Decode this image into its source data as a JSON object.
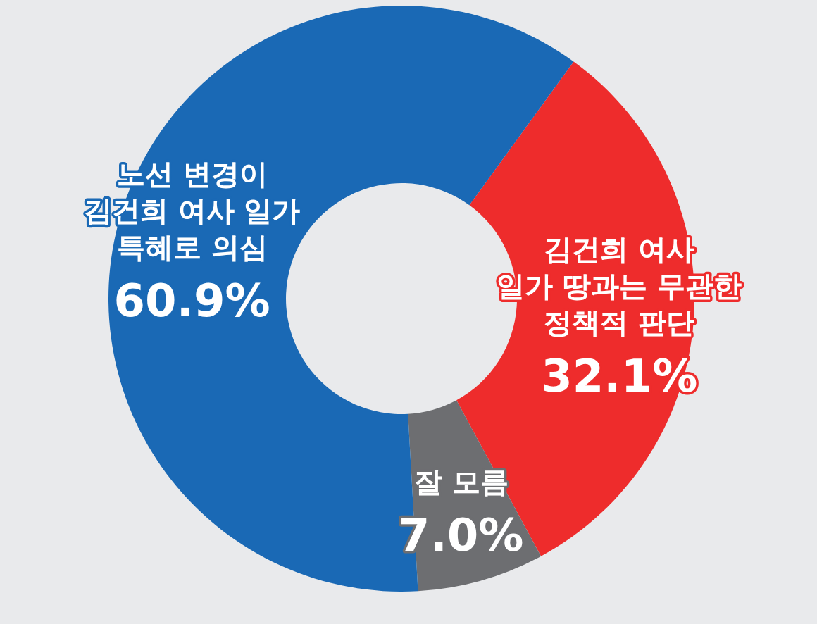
{
  "chart_data": {
    "type": "donut",
    "categories": [
      "김건희 여사\n일가 땅과는 무관한\n정책적 판단",
      "잘 모름",
      "노선 변경이\n김건희 여사 일가\n특혜로 의심"
    ],
    "values": [
      32.1,
      7.0,
      60.9
    ],
    "value_labels": [
      "32.1%",
      "7.0%",
      "60.9%"
    ],
    "colors": [
      "#ee2c2c",
      "#6d6e71",
      "#1a69b5"
    ]
  }
}
